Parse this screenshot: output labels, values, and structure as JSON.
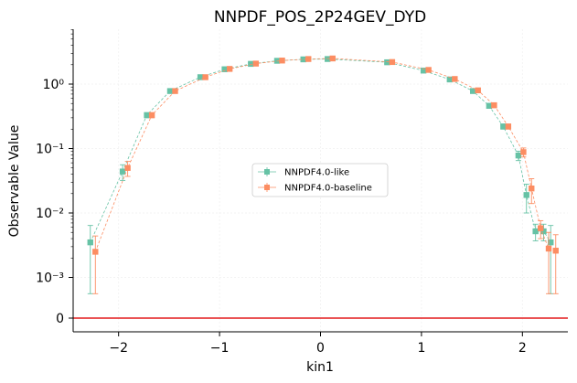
{
  "chart_data": {
    "type": "scatter",
    "title": "NNPDF_POS_2P24GEV_DYD",
    "xlabel": "kin1",
    "ylabel": "Observable Value",
    "yscale": "symlog",
    "xlim": [
      -2.45,
      2.45
    ],
    "x_ticks": [
      -2,
      -1,
      0,
      1,
      2
    ],
    "x_tick_labels": [
      "−2",
      "−1",
      "0",
      "1",
      "2"
    ],
    "y_ticks": [
      0,
      0.001,
      0.01,
      0.1,
      1
    ],
    "y_tick_labels": [
      "0",
      "10⁻³",
      "10⁻²",
      "10⁻¹",
      "10⁰"
    ],
    "legend": {
      "placement": "center-right"
    },
    "reference_line": {
      "y": 0,
      "color": "#e41a1c"
    },
    "series": [
      {
        "name": "NNPDF4.0-like",
        "color": "#66c2a5",
        "x": [
          -2.28,
          -1.96,
          -1.72,
          -1.49,
          -1.19,
          -0.95,
          -0.69,
          -0.43,
          -0.17,
          0.07,
          0.66,
          1.02,
          1.28,
          1.51,
          1.67,
          1.81,
          1.96,
          2.04,
          2.13,
          2.21,
          2.28
        ],
        "y": [
          0.0035,
          0.044,
          0.33,
          0.78,
          1.28,
          1.7,
          2.06,
          2.3,
          2.42,
          2.45,
          2.18,
          1.62,
          1.18,
          0.78,
          0.46,
          0.22,
          0.078,
          0.019,
          0.0052,
          0.0052,
          0.0035
        ],
        "err_low": [
          0.0029,
          0.012,
          0.03,
          0.05,
          0.06,
          0.08,
          0.08,
          0.08,
          0.08,
          0.08,
          0.08,
          0.07,
          0.06,
          0.05,
          0.04,
          0.02,
          0.013,
          0.009,
          0.0015,
          0.0015,
          0.0029
        ],
        "err_high": [
          0.0029,
          0.012,
          0.03,
          0.05,
          0.06,
          0.08,
          0.08,
          0.08,
          0.08,
          0.08,
          0.08,
          0.07,
          0.06,
          0.05,
          0.04,
          0.02,
          0.013,
          0.009,
          0.0015,
          0.0015,
          0.0029
        ]
      },
      {
        "name": "NNPDF4.0-baseline",
        "color": "#fc8d62",
        "x": [
          -2.23,
          -1.91,
          -1.67,
          -1.44,
          -1.14,
          -0.9,
          -0.64,
          -0.38,
          -0.12,
          0.12,
          0.71,
          1.07,
          1.33,
          1.56,
          1.72,
          1.86,
          2.01,
          2.09,
          2.18,
          2.26,
          2.33
        ],
        "y": [
          0.0025,
          0.05,
          0.33,
          0.78,
          1.28,
          1.72,
          2.08,
          2.32,
          2.45,
          2.5,
          2.2,
          1.66,
          1.2,
          0.8,
          0.47,
          0.22,
          0.088,
          0.024,
          0.0058,
          0.0028,
          0.0026
        ],
        "err_low": [
          0.0019,
          0.013,
          0.03,
          0.05,
          0.06,
          0.08,
          0.08,
          0.08,
          0.08,
          0.08,
          0.08,
          0.07,
          0.06,
          0.05,
          0.04,
          0.02,
          0.014,
          0.01,
          0.0018,
          0.0022,
          0.002
        ],
        "err_high": [
          0.0019,
          0.013,
          0.03,
          0.05,
          0.06,
          0.08,
          0.08,
          0.08,
          0.08,
          0.08,
          0.08,
          0.07,
          0.06,
          0.05,
          0.04,
          0.02,
          0.014,
          0.01,
          0.0018,
          0.0022,
          0.002
        ]
      }
    ]
  }
}
